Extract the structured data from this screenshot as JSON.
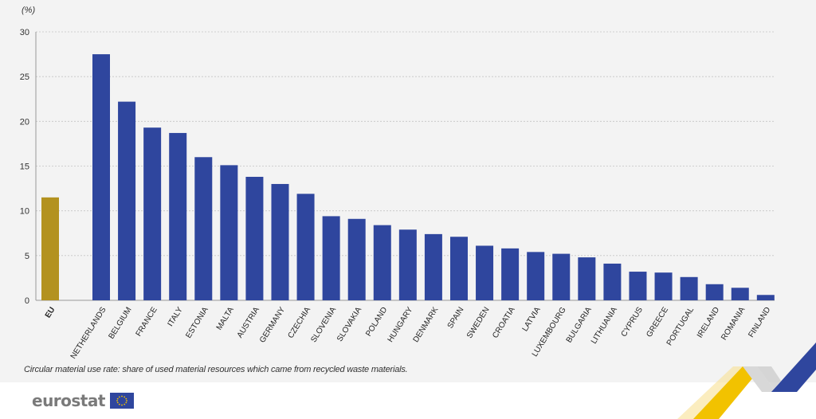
{
  "chart_data": {
    "type": "bar",
    "y_unit": "(%)",
    "ylim": [
      0,
      30
    ],
    "yticks": [
      0,
      5,
      10,
      15,
      20,
      25,
      30
    ],
    "grid": true,
    "categories": [
      "EU",
      "NETHERLANDS",
      "BELGIUM",
      "FRANCE",
      "ITALY",
      "ESTONIA",
      "MALTA",
      "AUSTRIA",
      "GERMANY",
      "CZECHIA",
      "SLOVENIA",
      "SLOVAKIA",
      "POLAND",
      "HUNGARY",
      "DENMARK",
      "SPAIN",
      "SWEDEN",
      "CROATIA",
      "LATVIA",
      "LUXEMBOURG",
      "BULGARIA",
      "LITHUANIA",
      "CYPRUS",
      "GREECE",
      "PORTUGAL",
      "IRELAND",
      "ROMANIA",
      "FINLAND"
    ],
    "values": [
      11.5,
      27.5,
      22.2,
      19.3,
      18.7,
      16.0,
      15.1,
      13.8,
      13.0,
      11.9,
      9.4,
      9.1,
      8.4,
      7.9,
      7.4,
      7.1,
      6.1,
      5.8,
      5.4,
      5.2,
      4.8,
      4.1,
      3.2,
      3.1,
      2.6,
      1.8,
      1.4,
      0.6
    ],
    "colors": {
      "EU": "#b3921f",
      "countries": "#2f469e"
    }
  },
  "footnote": "Circular material use rate: share of used material resources which came from recycled waste materials.",
  "brand": {
    "name": "eurostat",
    "flag": "eu-flag-icon"
  },
  "colors": {
    "background": "#f3f3f3",
    "grid": "#c4c4c4",
    "accent_yellow": "#f2c200",
    "accent_blue": "#2f469e"
  }
}
